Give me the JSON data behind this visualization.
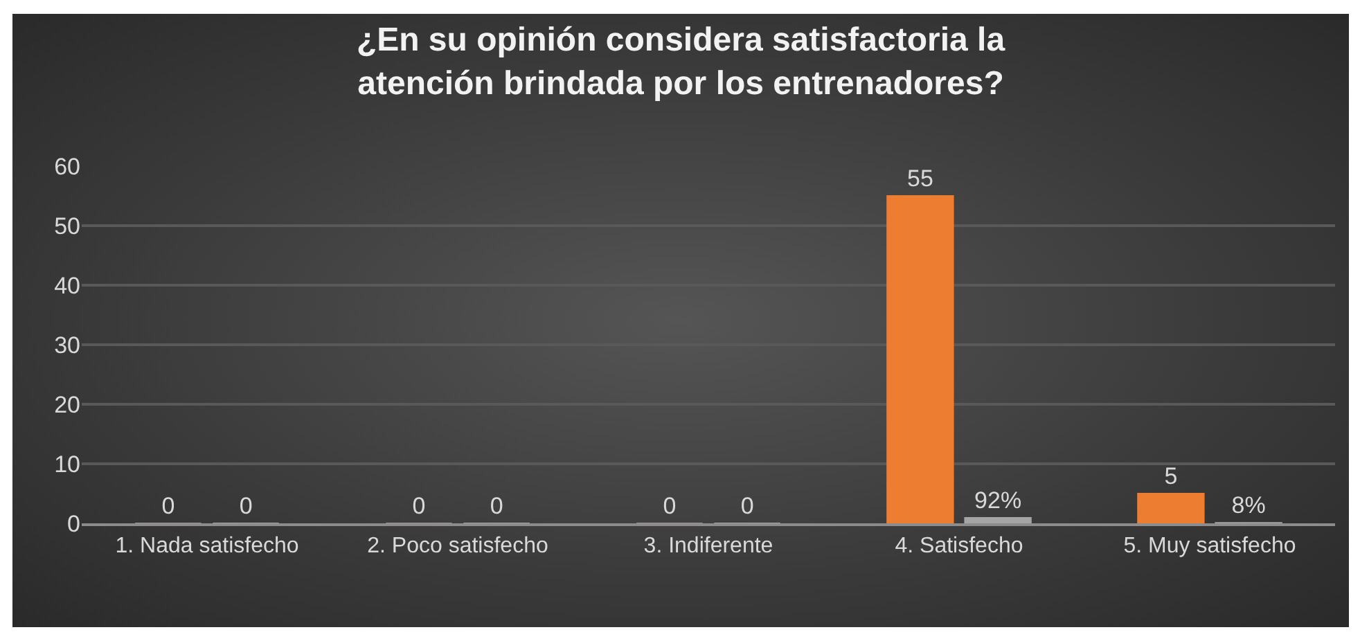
{
  "chart_data": {
    "type": "bar",
    "title": "¿En su opinión considera satisfactoria la\natención brindada por los entrenadores?",
    "categories": [
      "1. Nada satisfecho",
      "2. Poco satisfecho",
      "3. Indiferente",
      "4. Satisfecho",
      "5. Muy satisfecho"
    ],
    "series": [
      {
        "color": "#ed7d31",
        "values": [
          0,
          0,
          0,
          55,
          5
        ],
        "value_labels": [
          "0",
          "0",
          "0",
          "55",
          "5"
        ]
      },
      {
        "color": "#a5a5a5",
        "values": [
          0,
          0,
          0,
          0.92,
          0.08
        ],
        "value_labels": [
          "0",
          "0",
          "0",
          "92%",
          "8%"
        ]
      }
    ],
    "ylim": [
      0,
      60
    ],
    "yticks": [
      0,
      10,
      20,
      30,
      40,
      50,
      60
    ],
    "grid": "y"
  }
}
